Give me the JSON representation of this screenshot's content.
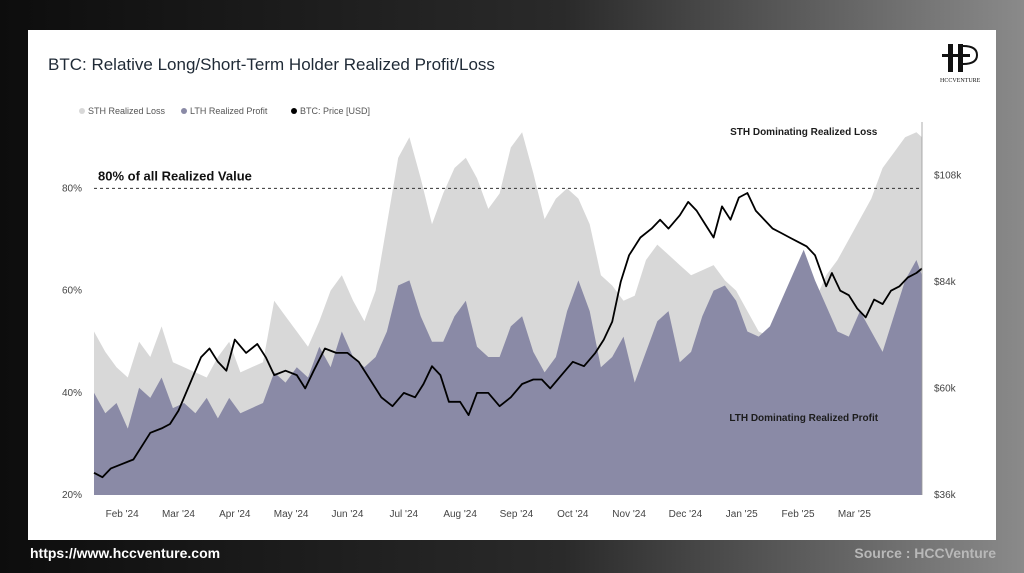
{
  "footer": {
    "url": "https://www.hccventure.com",
    "source": "Source : HCCVenture"
  },
  "logo": {
    "text": "HCCVENTURE"
  },
  "chart_data": {
    "type": "area",
    "title": "BTC: Relative Long/Short-Term Holder Realized Profit/Loss",
    "legend": [
      {
        "name": "STH Realized Loss",
        "color": "#d8d8d8"
      },
      {
        "name": "LTH Realized Profit",
        "color": "#8a8aa6"
      },
      {
        "name": "BTC: Price [USD]",
        "color": "#000000"
      }
    ],
    "legend_position": "top-left",
    "grid": false,
    "x_categories": [
      "Feb '24",
      "Mar '24",
      "Apr '24",
      "May '24",
      "Jun '24",
      "Jul '24",
      "Aug '24",
      "Sep '24",
      "Oct '24",
      "Nov '24",
      "Dec '24",
      "Jan '25",
      "Feb '25",
      "Mar '25"
    ],
    "x_range": [
      0,
      14.7
    ],
    "y_left": {
      "ticks": [
        "20%",
        "40%",
        "60%",
        "80%"
      ],
      "tick_values": [
        20,
        40,
        60,
        80
      ],
      "range": [
        20,
        93
      ]
    },
    "y_right": {
      "ticks": [
        "$36k",
        "$60k",
        "$84k",
        "$108k"
      ],
      "tick_values": [
        36,
        60,
        84,
        108
      ],
      "range": [
        36,
        120
      ]
    },
    "reference_line": {
      "y": 80,
      "label": "80% of all Realized Value"
    },
    "annotations": [
      {
        "text": "STH Dominating Realized Loss",
        "x": 12.6,
        "y": 90.5
      },
      {
        "text": "LTH Dominating Realized Profit",
        "x": 12.6,
        "y": 34.5
      }
    ],
    "series": [
      {
        "name": "STH Realized Loss",
        "x": [
          0.0,
          0.2,
          0.4,
          0.6,
          0.8,
          1.0,
          1.2,
          1.4,
          1.6,
          1.8,
          2.0,
          2.2,
          2.4,
          2.6,
          2.8,
          3.0,
          3.2,
          3.4,
          3.6,
          3.8,
          4.0,
          4.2,
          4.4,
          4.6,
          4.8,
          5.0,
          5.2,
          5.4,
          5.6,
          5.8,
          6.0,
          6.2,
          6.4,
          6.6,
          6.8,
          7.0,
          7.2,
          7.4,
          7.6,
          7.8,
          8.0,
          8.2,
          8.4,
          8.6,
          8.8,
          9.0,
          9.2,
          9.4,
          9.6,
          9.8,
          10.0,
          10.2,
          10.4,
          10.6,
          10.8,
          11.0,
          11.2,
          11.4,
          11.6,
          11.8,
          12.0,
          12.2,
          12.4,
          12.6,
          12.8,
          13.0,
          13.2,
          13.4,
          13.6,
          13.8,
          14.0,
          14.2,
          14.4,
          14.6,
          14.7
        ],
        "values": [
          52,
          48,
          45,
          43,
          50,
          47,
          53,
          46,
          45,
          44,
          43,
          47,
          50,
          44,
          45,
          46,
          58,
          55,
          52,
          49,
          54,
          60,
          63,
          58,
          54,
          60,
          73,
          86,
          90,
          82,
          73,
          79,
          84,
          86,
          82,
          76,
          79,
          88,
          91,
          83,
          74,
          78,
          80,
          78,
          73,
          63,
          61,
          58,
          59,
          66,
          69,
          67,
          65,
          63,
          64,
          65,
          62,
          60,
          56,
          52,
          51,
          55,
          57,
          59,
          58,
          63,
          66,
          70,
          74,
          78,
          84,
          87,
          90,
          91,
          90
        ]
      },
      {
        "name": "LTH Realized Profit",
        "x": [
          0.0,
          0.2,
          0.4,
          0.6,
          0.8,
          1.0,
          1.2,
          1.4,
          1.6,
          1.8,
          2.0,
          2.2,
          2.4,
          2.6,
          2.8,
          3.0,
          3.2,
          3.4,
          3.6,
          3.8,
          4.0,
          4.2,
          4.4,
          4.6,
          4.8,
          5.0,
          5.2,
          5.4,
          5.6,
          5.8,
          6.0,
          6.2,
          6.4,
          6.6,
          6.8,
          7.0,
          7.2,
          7.4,
          7.6,
          7.8,
          8.0,
          8.2,
          8.4,
          8.6,
          8.8,
          9.0,
          9.2,
          9.4,
          9.6,
          9.8,
          10.0,
          10.2,
          10.4,
          10.6,
          10.8,
          11.0,
          11.2,
          11.4,
          11.6,
          11.8,
          12.0,
          12.2,
          12.4,
          12.6,
          12.8,
          13.0,
          13.2,
          13.4,
          13.6,
          13.8,
          14.0,
          14.2,
          14.4,
          14.6,
          14.7
        ],
        "values": [
          40,
          36,
          38,
          33,
          41,
          39,
          43,
          37,
          38,
          36,
          39,
          35,
          39,
          36,
          37,
          38,
          44,
          42,
          45,
          43,
          49,
          45,
          52,
          47,
          45,
          47,
          52,
          61,
          62,
          55,
          50,
          50,
          55,
          58,
          49,
          47,
          47,
          53,
          55,
          48,
          44,
          47,
          56,
          62,
          56,
          45,
          47,
          51,
          42,
          48,
          54,
          56,
          46,
          48,
          55,
          60,
          61,
          58,
          52,
          51,
          53,
          58,
          63,
          68,
          62,
          57,
          52,
          51,
          56,
          52,
          48,
          55,
          62,
          66,
          63
        ]
      },
      {
        "name": "BTC: Price [USD]",
        "x": [
          0.0,
          0.15,
          0.3,
          0.5,
          0.7,
          0.9,
          1.0,
          1.2,
          1.35,
          1.5,
          1.7,
          1.9,
          2.05,
          2.2,
          2.35,
          2.5,
          2.7,
          2.9,
          3.05,
          3.2,
          3.4,
          3.6,
          3.75,
          3.9,
          4.1,
          4.3,
          4.5,
          4.7,
          4.9,
          5.1,
          5.3,
          5.5,
          5.7,
          5.85,
          6.0,
          6.15,
          6.3,
          6.5,
          6.65,
          6.8,
          7.0,
          7.2,
          7.4,
          7.6,
          7.8,
          7.95,
          8.1,
          8.3,
          8.5,
          8.7,
          8.9,
          9.05,
          9.2,
          9.35,
          9.5,
          9.7,
          9.9,
          10.05,
          10.2,
          10.4,
          10.55,
          10.7,
          10.85,
          11.0,
          11.15,
          11.3,
          11.45,
          11.6,
          11.75,
          11.9,
          12.05,
          12.2,
          12.35,
          12.5,
          12.65,
          12.8,
          13.0,
          13.1,
          13.25,
          13.4,
          13.55,
          13.7,
          13.85,
          14.0,
          14.15,
          14.3,
          14.45,
          14.6,
          14.7
        ],
        "values": [
          41,
          40,
          42,
          43,
          44,
          48,
          50,
          51,
          52,
          55,
          61,
          67,
          69,
          66,
          64,
          71,
          68,
          70,
          67,
          63,
          64,
          63,
          60,
          64,
          69,
          68,
          68,
          66,
          62,
          58,
          56,
          59,
          58,
          61,
          65,
          63,
          57,
          57,
          54,
          59,
          59,
          56,
          58,
          61,
          62,
          62,
          60,
          63,
          66,
          65,
          68,
          71,
          75,
          84,
          90,
          94,
          96,
          98,
          96,
          99,
          102,
          100,
          97,
          94,
          101,
          98,
          103,
          104,
          100,
          98,
          96,
          95,
          94,
          93,
          92,
          90,
          83,
          86,
          82,
          81,
          78,
          76,
          80,
          79,
          82,
          83,
          85,
          86,
          87
        ]
      }
    ]
  }
}
